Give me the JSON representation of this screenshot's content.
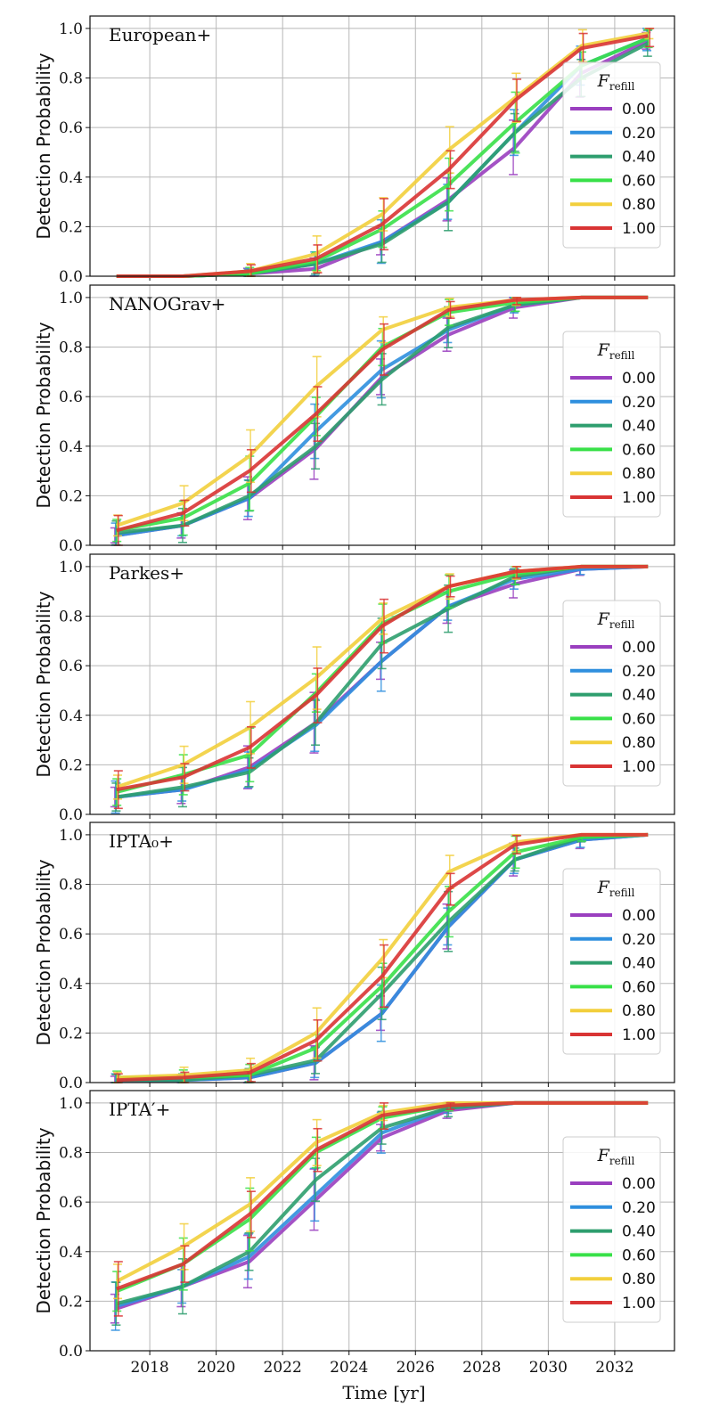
{
  "chart_data": {
    "type": "line",
    "xlabel": "Time [yr]",
    "ylabel": "Detection Probability",
    "xlim": [
      2016.2,
      2033.8
    ],
    "ylim": [
      0,
      1.05
    ],
    "x": [
      2017,
      2019,
      2021,
      2023,
      2025,
      2027,
      2029,
      2031,
      2033
    ],
    "xticks": [
      "2018",
      "2020",
      "2022",
      "2024",
      "2026",
      "2028",
      "2030",
      "2032"
    ],
    "yticks": [
      "0.0",
      "0.2",
      "0.4",
      "0.6",
      "0.8",
      "1.0"
    ],
    "legend_title": "F_refill",
    "series_names": [
      "0.00",
      "0.20",
      "0.40",
      "0.60",
      "0.80",
      "1.00"
    ],
    "series_colors": [
      "#9a3fbf",
      "#2f8fde",
      "#2e9e6e",
      "#38e048",
      "#f2cf3c",
      "#d93434"
    ],
    "panels": [
      {
        "title": "European+",
        "series": [
          {
            "name": "0.00",
            "values": [
              0.0,
              0.0,
              0.01,
              0.03,
              0.14,
              0.31,
              0.52,
              0.82,
              0.95
            ]
          },
          {
            "name": "0.20",
            "values": [
              0.0,
              0.0,
              0.01,
              0.05,
              0.14,
              0.3,
              0.58,
              0.85,
              0.96
            ]
          },
          {
            "name": "0.40",
            "values": [
              0.0,
              0.0,
              0.01,
              0.05,
              0.13,
              0.3,
              0.58,
              0.8,
              0.94
            ]
          },
          {
            "name": "0.60",
            "values": [
              0.0,
              0.0,
              0.01,
              0.06,
              0.19,
              0.37,
              0.62,
              0.85,
              0.96
            ]
          },
          {
            "name": "0.80",
            "values": [
              0.0,
              0.0,
              0.02,
              0.09,
              0.25,
              0.51,
              0.72,
              0.93,
              0.98
            ]
          },
          {
            "name": "1.00",
            "values": [
              0.0,
              0.0,
              0.02,
              0.07,
              0.21,
              0.43,
              0.71,
              0.92,
              0.97
            ]
          }
        ]
      },
      {
        "title": "NANOGrav+",
        "series": [
          {
            "name": "0.00",
            "values": [
              0.04,
              0.08,
              0.19,
              0.39,
              0.68,
              0.85,
              0.96,
              1.0,
              1.0
            ]
          },
          {
            "name": "0.20",
            "values": [
              0.04,
              0.08,
              0.19,
              0.46,
              0.71,
              0.87,
              0.97,
              1.0,
              1.0
            ]
          },
          {
            "name": "0.40",
            "values": [
              0.05,
              0.08,
              0.2,
              0.4,
              0.67,
              0.88,
              0.97,
              1.0,
              1.0
            ]
          },
          {
            "name": "0.60",
            "values": [
              0.06,
              0.11,
              0.25,
              0.52,
              0.8,
              0.94,
              0.98,
              1.0,
              1.0
            ]
          },
          {
            "name": "0.80",
            "values": [
              0.08,
              0.17,
              0.36,
              0.64,
              0.87,
              0.96,
              0.99,
              1.0,
              1.0
            ]
          },
          {
            "name": "1.00",
            "values": [
              0.06,
              0.13,
              0.3,
              0.53,
              0.79,
              0.95,
              0.99,
              1.0,
              1.0
            ]
          }
        ]
      },
      {
        "title": "Parkes+",
        "series": [
          {
            "name": "0.00",
            "values": [
              0.07,
              0.1,
              0.19,
              0.37,
              0.62,
              0.84,
              0.93,
              0.99,
              1.0
            ]
          },
          {
            "name": "0.20",
            "values": [
              0.07,
              0.1,
              0.18,
              0.36,
              0.62,
              0.84,
              0.95,
              0.99,
              1.0
            ]
          },
          {
            "name": "0.40",
            "values": [
              0.07,
              0.11,
              0.17,
              0.37,
              0.69,
              0.83,
              0.96,
              1.0,
              1.0
            ]
          },
          {
            "name": "0.60",
            "values": [
              0.09,
              0.16,
              0.24,
              0.49,
              0.77,
              0.9,
              0.97,
              1.0,
              1.0
            ]
          },
          {
            "name": "0.80",
            "values": [
              0.11,
              0.2,
              0.35,
              0.55,
              0.79,
              0.92,
              0.98,
              1.0,
              1.0
            ]
          },
          {
            "name": "1.00",
            "values": [
              0.1,
              0.15,
              0.27,
              0.48,
              0.76,
              0.92,
              0.98,
              1.0,
              1.0
            ]
          }
        ]
      },
      {
        "title": "IPTA₀+",
        "series": [
          {
            "name": "0.00",
            "values": [
              0.01,
              0.01,
              0.02,
              0.08,
              0.28,
              0.63,
              0.9,
              0.98,
              1.0
            ]
          },
          {
            "name": "0.20",
            "values": [
              0.01,
              0.01,
              0.02,
              0.08,
              0.28,
              0.63,
              0.9,
              0.98,
              1.0
            ]
          },
          {
            "name": "0.40",
            "values": [
              0.01,
              0.01,
              0.03,
              0.09,
              0.36,
              0.65,
              0.9,
              0.99,
              1.0
            ]
          },
          {
            "name": "0.60",
            "values": [
              0.02,
              0.02,
              0.03,
              0.14,
              0.39,
              0.69,
              0.93,
              0.99,
              1.0
            ]
          },
          {
            "name": "0.80",
            "values": [
              0.02,
              0.03,
              0.05,
              0.2,
              0.5,
              0.85,
              0.97,
              1.0,
              1.0
            ]
          },
          {
            "name": "1.00",
            "values": [
              0.01,
              0.02,
              0.04,
              0.17,
              0.43,
              0.78,
              0.96,
              1.0,
              1.0
            ]
          }
        ]
      },
      {
        "title": "IPTA′+",
        "series": [
          {
            "name": "0.00",
            "values": [
              0.17,
              0.26,
              0.36,
              0.61,
              0.86,
              0.97,
              1.0,
              1.0,
              1.0
            ]
          },
          {
            "name": "0.20",
            "values": [
              0.18,
              0.26,
              0.38,
              0.63,
              0.88,
              0.98,
              1.0,
              1.0,
              1.0
            ]
          },
          {
            "name": "0.40",
            "values": [
              0.19,
              0.26,
              0.4,
              0.69,
              0.9,
              0.98,
              1.0,
              1.0,
              1.0
            ]
          },
          {
            "name": "0.60",
            "values": [
              0.24,
              0.35,
              0.53,
              0.8,
              0.94,
              0.99,
              1.0,
              1.0,
              1.0
            ]
          },
          {
            "name": "0.80",
            "values": [
              0.28,
              0.42,
              0.59,
              0.84,
              0.96,
              1.0,
              1.0,
              1.0,
              1.0
            ]
          },
          {
            "name": "1.00",
            "values": [
              0.25,
              0.35,
              0.55,
              0.81,
              0.95,
              0.99,
              1.0,
              1.0,
              1.0
            ]
          }
        ]
      }
    ]
  }
}
